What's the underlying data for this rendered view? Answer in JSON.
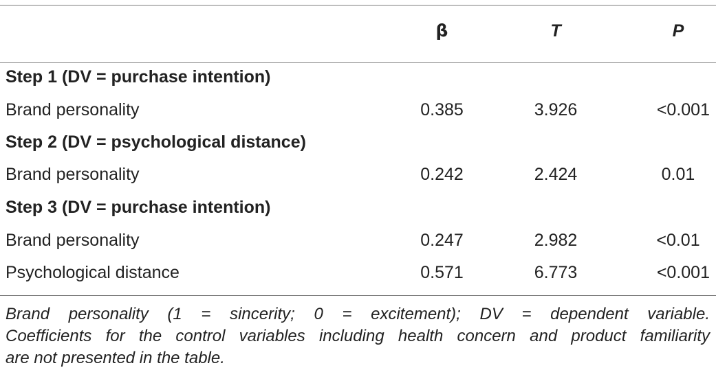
{
  "table": {
    "headers": {
      "label": "",
      "beta": "β",
      "t": "T",
      "p": "P"
    },
    "rows": [
      {
        "type": "step",
        "label": "Step 1 (DV = purchase intention)"
      },
      {
        "type": "data",
        "label": "Brand personality",
        "beta": "0.385",
        "t": "3.926",
        "p": "<0.001"
      },
      {
        "type": "step",
        "label": "Step 2 (DV = psychological distance)"
      },
      {
        "type": "data",
        "label": "Brand personality",
        "beta": "0.242",
        "t": "2.424",
        "p": "0.01"
      },
      {
        "type": "step",
        "label": "Step 3 (DV = purchase intention)"
      },
      {
        "type": "data",
        "label": "Brand personality",
        "beta": "0.247",
        "t": "2.982",
        "p": "<0.01"
      },
      {
        "type": "data",
        "label": "Psychological distance",
        "beta": "0.571",
        "t": "6.773",
        "p": "<0.001"
      }
    ]
  },
  "footnote": {
    "line1": "Brand personality (1 = sincerity; 0 = excitement); DV = dependent variable.",
    "line2": "Coefficients for the control variables including health concern and product familiarity",
    "line3": "are not presented in the table."
  }
}
